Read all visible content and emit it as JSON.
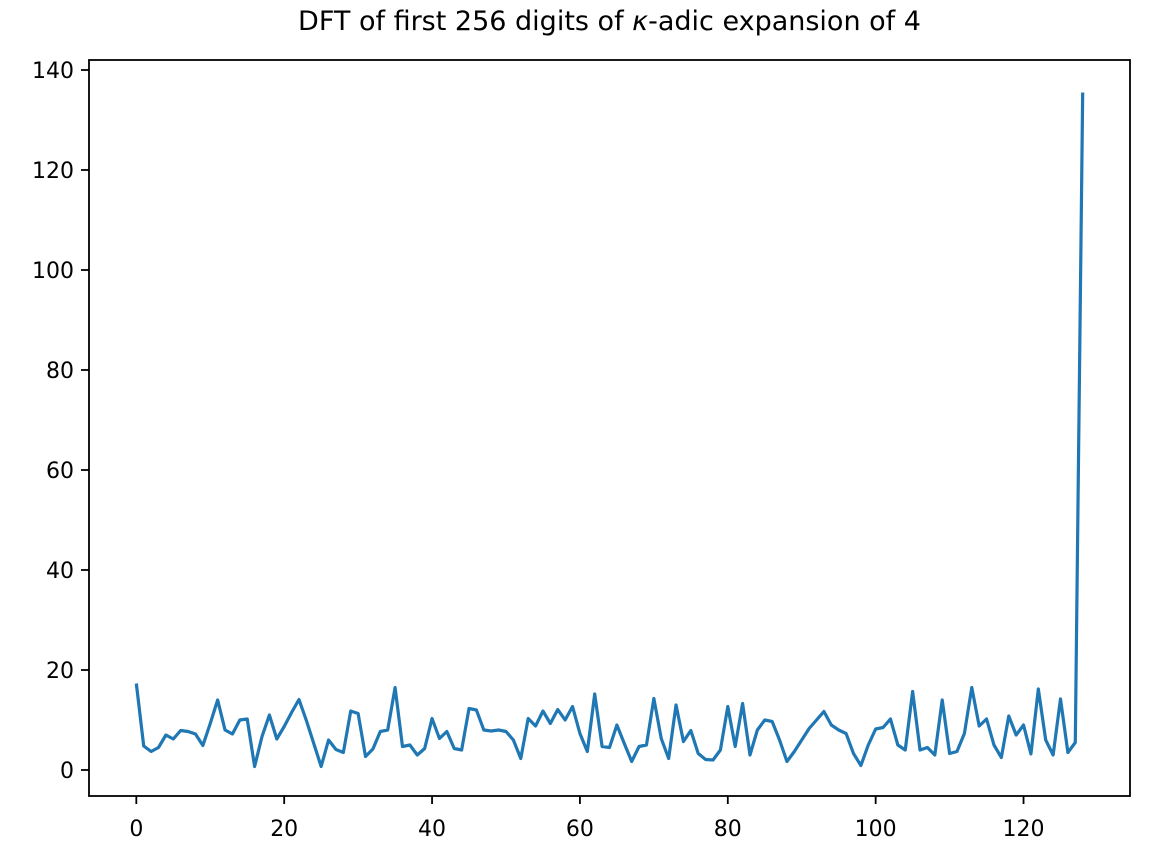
{
  "figure": {
    "title_prefix": "DFT of first 256 digits of ",
    "title_kappa": "κ",
    "title_suffix": "-adic expansion of 4",
    "background_color": "#ffffff",
    "text_color": "#000000"
  },
  "chart_data": {
    "type": "line",
    "title": "DFT of first 256 digits of κ-adic expansion of 4",
    "xlabel": "",
    "ylabel": "",
    "legend": null,
    "grid": false,
    "line_color": "#1f77b4",
    "line_width": 3.2,
    "x_ticks": [
      0,
      20,
      40,
      60,
      80,
      100,
      120
    ],
    "y_ticks": [
      0,
      20,
      40,
      60,
      80,
      100,
      120,
      140
    ],
    "xlim": [
      -6.4,
      134.4
    ],
    "ylim": [
      -5.2,
      142.0
    ],
    "x": [
      0,
      1,
      2,
      3,
      4,
      5,
      6,
      7,
      8,
      9,
      10,
      11,
      12,
      13,
      14,
      15,
      16,
      17,
      18,
      19,
      20,
      21,
      22,
      23,
      24,
      25,
      26,
      27,
      28,
      29,
      30,
      31,
      32,
      33,
      34,
      35,
      36,
      37,
      38,
      39,
      40,
      41,
      42,
      43,
      44,
      45,
      46,
      47,
      48,
      49,
      50,
      51,
      52,
      53,
      54,
      55,
      56,
      57,
      58,
      59,
      60,
      61,
      62,
      63,
      64,
      65,
      66,
      67,
      68,
      69,
      70,
      71,
      72,
      73,
      74,
      75,
      76,
      77,
      78,
      79,
      80,
      81,
      82,
      83,
      84,
      85,
      86,
      87,
      88,
      89,
      90,
      91,
      92,
      93,
      94,
      95,
      96,
      97,
      98,
      99,
      100,
      101,
      102,
      103,
      104,
      105,
      106,
      107,
      108,
      109,
      110,
      111,
      112,
      113,
      114,
      115,
      116,
      117,
      118,
      119,
      120,
      121,
      122,
      123,
      124,
      125,
      126,
      127,
      128
    ],
    "values": [
      17.3,
      4.8,
      3.7,
      4.5,
      7.0,
      6.2,
      7.9,
      7.7,
      7.2,
      4.9,
      9.3,
      14.0,
      8.0,
      7.2,
      10.0,
      10.2,
      0.7,
      6.7,
      11.0,
      6.2,
      8.7,
      11.5,
      14.1,
      9.9,
      5.3,
      0.7,
      6.0,
      4.1,
      3.5,
      11.8,
      11.3,
      2.7,
      4.2,
      7.7,
      8.0,
      16.5,
      4.7,
      5.0,
      3.0,
      4.3,
      10.3,
      6.3,
      7.7,
      4.3,
      4.0,
      12.3,
      12.0,
      8.0,
      7.8,
      8.0,
      7.7,
      6.0,
      2.3,
      10.3,
      8.8,
      11.8,
      9.3,
      12.1,
      10.0,
      12.7,
      7.3,
      3.7,
      15.2,
      4.7,
      4.5,
      9.0,
      5.3,
      1.7,
      4.7,
      5.0,
      14.3,
      6.3,
      2.3,
      13.0,
      5.7,
      7.9,
      3.3,
      2.1,
      2.0,
      4.0,
      12.7,
      4.7,
      13.3,
      3.0,
      8.0,
      10.0,
      9.7,
      6.0,
      1.7,
      3.7,
      6.0,
      8.3,
      10.0,
      11.7,
      9.0,
      8.0,
      7.3,
      3.3,
      0.9,
      5.0,
      8.2,
      8.5,
      10.2,
      5.0,
      4.0,
      15.7,
      4.0,
      4.5,
      3.0,
      14.0,
      3.3,
      3.7,
      7.3,
      16.5,
      8.8,
      10.2,
      5.0,
      2.5,
      10.8,
      7.0,
      9.0,
      3.2,
      16.2,
      6.0,
      3.0,
      14.2,
      3.5,
      5.5,
      135.5
    ]
  }
}
